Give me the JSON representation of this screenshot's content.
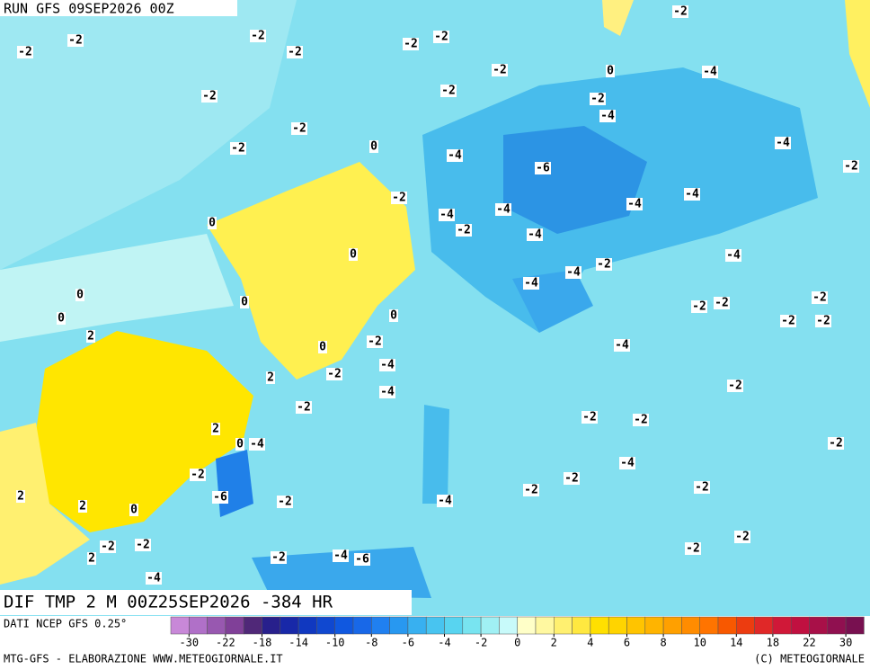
{
  "header": {
    "run": "RUN GFS 09SEP2026 00Z"
  },
  "map": {
    "title": "DIF TMP 2 M 00Z25SEP2026 -384 HR",
    "labels": [
      -2,
      -2,
      -2,
      -2,
      -2,
      -2,
      -2,
      -2,
      -4,
      0,
      -2,
      -2,
      -2,
      -4,
      -2,
      -2,
      0,
      -4,
      -6,
      -4,
      -2,
      -2,
      -4,
      -4,
      0,
      -4,
      -4,
      -2,
      -4,
      -4,
      0,
      -2,
      -4,
      -4,
      0,
      0,
      -2,
      -2,
      -2,
      0,
      0,
      -2,
      -2,
      2,
      -2,
      0,
      -4,
      -4,
      -2,
      2,
      -4,
      -2,
      -2,
      -2,
      -2,
      2,
      0,
      -4,
      -2,
      -2,
      -4,
      -2,
      -2,
      -6,
      2,
      -2,
      -4,
      -2,
      2,
      0,
      -2,
      -2,
      -2,
      -2,
      2,
      -2,
      -4,
      -6,
      -4
    ]
  },
  "colorbar": {
    "source": "DATI NCEP GFS 0.25°",
    "colors": [
      "#c888d8",
      "#b070c8",
      "#9858b0",
      "#804098",
      "#502878",
      "#28208c",
      "#1828a8",
      "#1038c0",
      "#1048d0",
      "#1058e0",
      "#1868e8",
      "#2080f0",
      "#2898f0",
      "#38b0f0",
      "#48c4f0",
      "#58d4f0",
      "#78e4f0",
      "#a0f0f4",
      "#c8fafa",
      "#ffffc8",
      "#fff8a0",
      "#fff070",
      "#ffe840",
      "#ffe000",
      "#ffd400",
      "#ffc400",
      "#ffb400",
      "#ffa000",
      "#ff8c00",
      "#ff7400",
      "#f85800",
      "#ec3c10",
      "#e02828",
      "#d01838",
      "#c01040",
      "#a81048",
      "#901050",
      "#781050"
    ],
    "ticks": [
      -30,
      -22,
      -18,
      -14,
      -10,
      -8,
      -6,
      -4,
      -2,
      0,
      2,
      4,
      6,
      8,
      10,
      14,
      18,
      22,
      30
    ]
  },
  "footer": {
    "left": "MTG-GFS - ELABORAZIONE WWW.METEOGIORNALE.IT",
    "right": "(C) METEOGIORNALE"
  }
}
